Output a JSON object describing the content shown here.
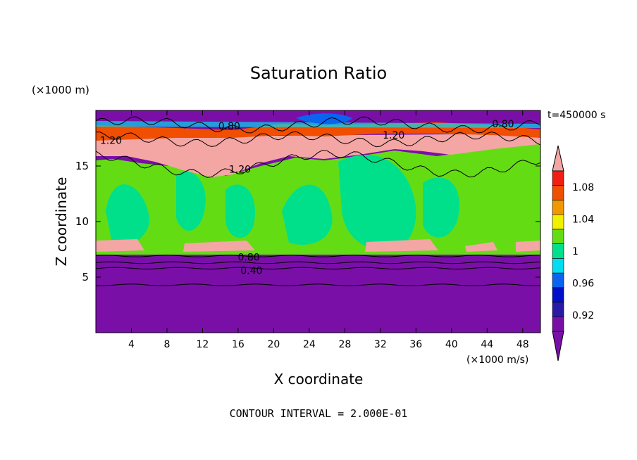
{
  "chart_data": {
    "type": "heatmap",
    "title": "Saturation Ratio",
    "xlabel": "X coordinate",
    "ylabel": "Z coordinate",
    "x_unit": "(×1000 m/s)",
    "y_unit": "(×1000 m)",
    "time_label": "t=450000 s",
    "footer": "CONTOUR INTERVAL = 2.000E-01",
    "xlim": [
      0,
      50
    ],
    "ylim": [
      0,
      20
    ],
    "x_ticks": [
      4,
      8,
      12,
      16,
      20,
      24,
      28,
      32,
      36,
      40,
      44,
      48
    ],
    "y_ticks": [
      5,
      10,
      15
    ],
    "colorbar": {
      "levels": [
        0.9,
        0.92,
        0.94,
        0.96,
        0.98,
        1.0,
        1.02,
        1.04,
        1.06,
        1.08,
        1.1
      ],
      "tick_labels": [
        {
          "value": 0.92,
          "text": "0.92"
        },
        {
          "value": 0.96,
          "text": "0.96"
        },
        {
          "value": 1.0,
          "text": "1"
        },
        {
          "value": 1.04,
          "text": "1.04"
        },
        {
          "value": 1.08,
          "text": "1.08"
        }
      ],
      "colors": [
        "#7a0fa8",
        "#2a1aa8",
        "#0010c8",
        "#0a64f0",
        "#00dcf0",
        "#00e08a",
        "#64dc14",
        "#f0f000",
        "#f09800",
        "#f04e00",
        "#f01e14"
      ],
      "over_color": "#f4a6a4",
      "under_color": "#7a0fa8"
    },
    "contour_labels": [
      {
        "text": "0.80",
        "x": 15,
        "z": 18.6
      },
      {
        "text": "0.80",
        "x": 45.8,
        "z": 18.8
      },
      {
        "text": "1.20",
        "x": 33.5,
        "z": 17.8
      },
      {
        "text": "1.20",
        "x": 1.7,
        "z": 17.3
      },
      {
        "text": "1.20",
        "x": 16.2,
        "z": 14.7
      },
      {
        "text": "0.80",
        "x": 17.2,
        "z": 6.8
      },
      {
        "text": "0.40",
        "x": 17.5,
        "z": 5.6
      }
    ],
    "lines": {
      "surface_levels_z": [
        6.9,
        6.3,
        5.8,
        4.3
      ]
    }
  }
}
